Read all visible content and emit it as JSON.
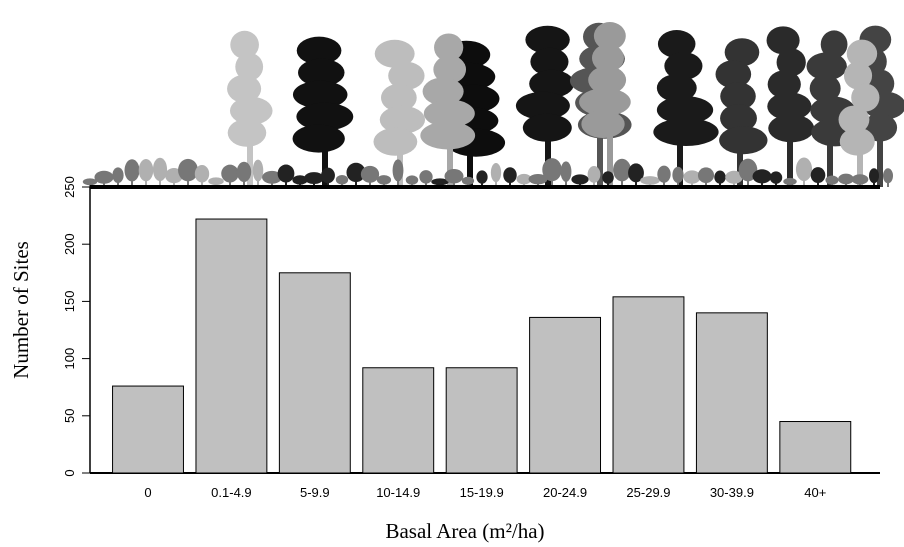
{
  "chart_data": {
    "type": "bar",
    "x_label": "Basal Area (m²/ha)",
    "y_label": "Number of Sites",
    "categories": [
      "0",
      "0.1-4.9",
      "5-9.9",
      "10-14.9",
      "15-19.9",
      "20-24.9",
      "25-29.9",
      "30-39.9",
      "40+"
    ],
    "values": [
      76,
      222,
      175,
      92,
      92,
      136,
      154,
      140,
      45
    ],
    "color": "#c0c0c0",
    "ylim": [
      0,
      250
    ],
    "yticks": [
      0,
      50,
      100,
      150,
      200,
      250
    ],
    "grid": false
  }
}
